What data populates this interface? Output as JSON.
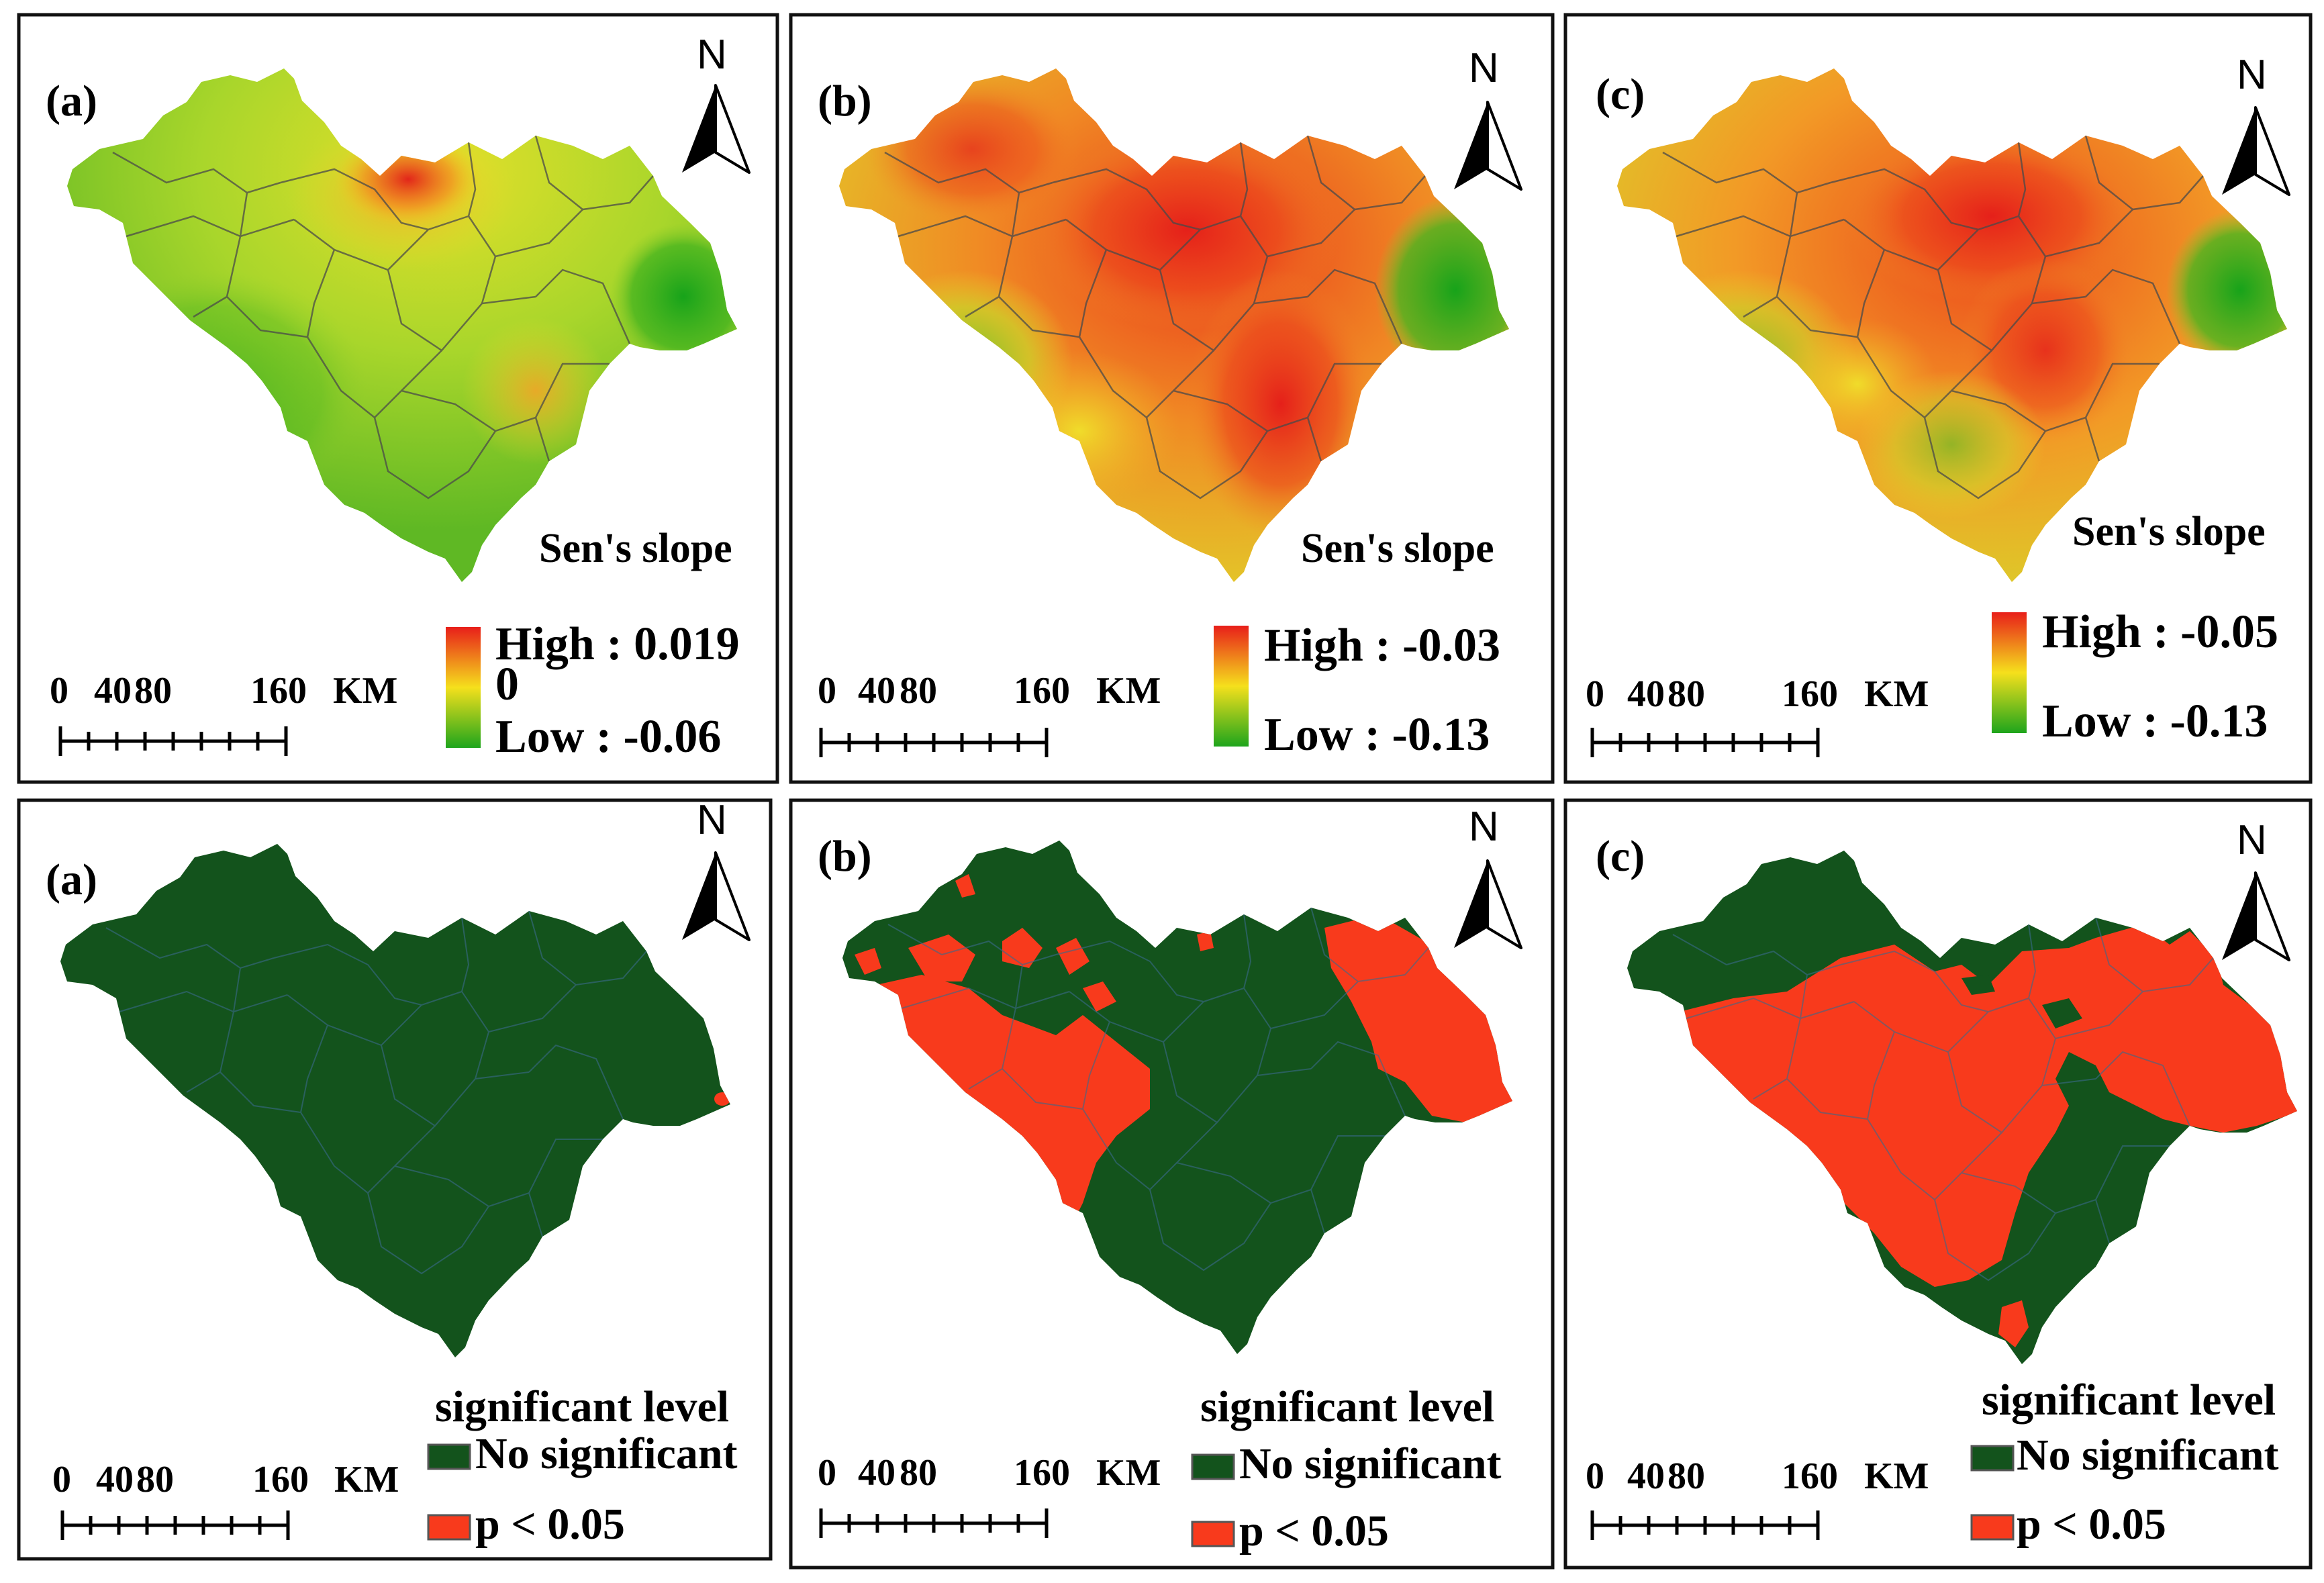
{
  "colors": {
    "high": "#e81f1a",
    "mid": "#f5e01c",
    "low": "#1ea51c",
    "no_significant": "#13531c",
    "significant": "#f83a1c"
  },
  "trend_panels": [
    {
      "label": "(a)",
      "north": "N",
      "legend_title": "Sen's slope",
      "high_label": "High : 0.019",
      "mid_label": "0",
      "low_label": "Low : -0.06",
      "scale": {
        "zero": "0",
        "forty": "40",
        "eighty": "80",
        "one_sixty": "160",
        "unit": "KM"
      }
    },
    {
      "label": "(b)",
      "north": "N",
      "legend_title": "Sen's slope",
      "high_label": "High : -0.03",
      "low_label": "Low : -0.13",
      "scale": {
        "zero": "0",
        "forty": "40",
        "eighty": "80",
        "one_sixty": "160",
        "unit": "KM"
      }
    },
    {
      "label": "(c)",
      "north": "N",
      "legend_title": "Sen's slope",
      "high_label": "High : -0.05",
      "low_label": "Low : -0.13",
      "scale": {
        "zero": "0",
        "forty": "40",
        "eighty": "80",
        "one_sixty": "160",
        "unit": "KM"
      }
    }
  ],
  "significance_panels": [
    {
      "label": "(a)",
      "north": "N",
      "legend_title": "significant level",
      "no_sig_label": "No significant",
      "sig_label": "p < 0.05",
      "scale": {
        "zero": "0",
        "forty": "40",
        "eighty": "80",
        "one_sixty": "160",
        "unit": "KM"
      }
    },
    {
      "label": "(b)",
      "north": "N",
      "legend_title": "significant level",
      "no_sig_label": "No significant",
      "sig_label": "p < 0.05",
      "scale": {
        "zero": "0",
        "forty": "40",
        "eighty": "80",
        "one_sixty": "160",
        "unit": "KM"
      }
    },
    {
      "label": "(c)",
      "north": "N",
      "legend_title": "significant level",
      "no_sig_label": "No significant",
      "sig_label": "p < 0.05",
      "scale": {
        "zero": "0",
        "forty": "40",
        "eighty": "80",
        "one_sixty": "160",
        "unit": "KM"
      }
    }
  ]
}
